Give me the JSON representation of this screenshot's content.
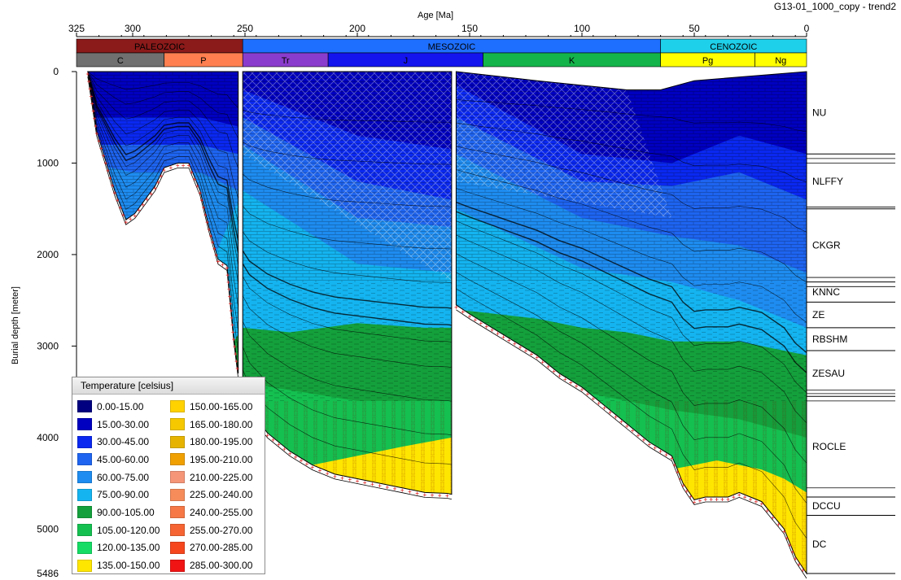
{
  "chart_data": {
    "type": "area",
    "title": "G13-01_1000_copy - trend2",
    "xlabel": "Age [Ma]",
    "ylabel": "Burial depth [meter]",
    "xlim": [
      325,
      0
    ],
    "ylim": [
      0,
      5486
    ],
    "x_ticks": [
      325,
      300,
      250,
      200,
      150,
      100,
      50,
      0
    ],
    "y_ticks": [
      0,
      1000,
      2000,
      3000,
      4000,
      5000,
      5486
    ],
    "eras": [
      {
        "name": "PALEOZOIC",
        "start": 325,
        "end": 251,
        "color": "#8b1a1a"
      },
      {
        "name": "MESOZOIC",
        "start": 251,
        "end": 65,
        "color": "#1e6fff"
      },
      {
        "name": "CENOZOIC",
        "start": 65,
        "end": 0,
        "color": "#1fd0ea"
      }
    ],
    "periods": [
      {
        "name": "C",
        "start": 325,
        "end": 286,
        "color": "#707070"
      },
      {
        "name": "P",
        "start": 286,
        "end": 251,
        "color": "#ff7f50"
      },
      {
        "name": "Tr",
        "start": 251,
        "end": 213,
        "color": "#8a3dcc"
      },
      {
        "name": "J",
        "start": 213,
        "end": 144,
        "color": "#1414ee"
      },
      {
        "name": "K",
        "start": 144,
        "end": 65,
        "color": "#14b44a"
      },
      {
        "name": "Pg",
        "start": 65,
        "end": 23,
        "color": "#ffff00"
      },
      {
        "name": "Ng",
        "start": 23,
        "end": 0,
        "color": "#ffff00"
      }
    ],
    "formations": [
      {
        "name": "NU",
        "top": 0,
        "base": 900
      },
      {
        "name": "NLFFY",
        "top": 900,
        "base": 1500
      },
      {
        "name": "CKGR",
        "top": 1500,
        "base": 2300
      },
      {
        "name": "KNNC",
        "top": 2300,
        "base": 2520
      },
      {
        "name": "ZE",
        "top": 2520,
        "base": 2800
      },
      {
        "name": "RBSHM",
        "top": 2800,
        "base": 3050
      },
      {
        "name": "ZESAU",
        "top": 3050,
        "base": 3550
      },
      {
        "name": "ROCLE",
        "top": 3550,
        "base": 4650
      },
      {
        "name": "DCCU",
        "top": 4650,
        "base": 4850
      },
      {
        "name": "DC",
        "top": 4850,
        "base": 5486
      }
    ],
    "legend": {
      "title": "Temperature [celsius]",
      "items": [
        {
          "label": "0.00-15.00",
          "color": "#000080"
        },
        {
          "label": "15.00-30.00",
          "color": "#0000c0"
        },
        {
          "label": "30.00-45.00",
          "color": "#0a28f0"
        },
        {
          "label": "45.00-60.00",
          "color": "#1e64f0"
        },
        {
          "label": "60.00-75.00",
          "color": "#1e8cf0"
        },
        {
          "label": "75.00-90.00",
          "color": "#14b4f0"
        },
        {
          "label": "90.00-105.00",
          "color": "#14a03c"
        },
        {
          "label": "105.00-120.00",
          "color": "#14c050"
        },
        {
          "label": "120.00-135.00",
          "color": "#14dc64"
        },
        {
          "label": "135.00-150.00",
          "color": "#ffe600"
        },
        {
          "label": "150.00-165.00",
          "color": "#ffd200"
        },
        {
          "label": "165.00-180.00",
          "color": "#f5c800"
        },
        {
          "label": "180.00-195.00",
          "color": "#e6b400"
        },
        {
          "label": "195.00-210.00",
          "color": "#f0a000"
        },
        {
          "label": "210.00-225.00",
          "color": "#f59678"
        },
        {
          "label": "225.00-240.00",
          "color": "#f58c5a"
        },
        {
          "label": "240.00-255.00",
          "color": "#f57846"
        },
        {
          "label": "255.00-270.00",
          "color": "#f56432"
        },
        {
          "label": "270.00-285.00",
          "color": "#f5461e"
        },
        {
          "label": "285.00-300.00",
          "color": "#f01414"
        }
      ]
    },
    "temperature_zones": [
      {
        "range": "0.00-15.00",
        "color": "#000080"
      },
      {
        "range": "15.00-30.00",
        "color": "#0000c0"
      },
      {
        "range": "30.00-45.00",
        "color": "#0a28f0"
      },
      {
        "range": "45.00-60.00",
        "color": "#1e64f0"
      },
      {
        "range": "60.00-75.00",
        "color": "#1e8cf0"
      },
      {
        "range": "75.00-90.00",
        "color": "#14b4f0"
      },
      {
        "range": "90.00-105.00",
        "color": "#14a03c"
      },
      {
        "range": "105.00-120.00",
        "color": "#14c050"
      },
      {
        "range": "120.00-135.00",
        "color": "#14dc64"
      },
      {
        "range": "135.00-150.00",
        "color": "#ffe600"
      }
    ],
    "basement_series": [
      {
        "x": [
          320,
          316,
          308,
          303,
          299,
          290,
          286,
          280,
          275,
          270,
          266,
          262,
          258,
          255,
          253
        ],
        "y": [
          0,
          650,
          1300,
          1620,
          1550,
          1250,
          1050,
          1000,
          1000,
          1300,
          1700,
          2050,
          2120,
          2900,
          3300
        ]
      },
      {
        "x": [
          251,
          248,
          240,
          230,
          220,
          210,
          200,
          190,
          180,
          170,
          160,
          158
        ],
        "y": [
          3500,
          3700,
          3950,
          4150,
          4300,
          4400,
          4450,
          4500,
          4550,
          4600,
          4610,
          4620
        ]
      },
      {
        "x": [
          156,
          150,
          140,
          130,
          120,
          110,
          100,
          90,
          80,
          70,
          60,
          55,
          50,
          45,
          40,
          35,
          30,
          25,
          20,
          15,
          10,
          5,
          0
        ],
        "y": [
          2550,
          2650,
          2800,
          2950,
          3100,
          3300,
          3450,
          3650,
          3850,
          4050,
          4200,
          4500,
          4680,
          4650,
          4650,
          4650,
          4600,
          4650,
          4700,
          4850,
          5000,
          5300,
          5486
        ]
      }
    ],
    "surface_series": [
      {
        "x": [
          320,
          253
        ],
        "y": [
          0,
          0
        ]
      },
      {
        "x": [
          251,
          158
        ],
        "y": [
          0,
          0
        ]
      },
      {
        "x": [
          156,
          120,
          100,
          80,
          65,
          50,
          0
        ],
        "y": [
          0,
          100,
          150,
          200,
          200,
          100,
          0
        ]
      }
    ],
    "zone_boundaries": [
      {
        "range": "30.00-45.00",
        "x": [
          320,
          300,
          290,
          270,
          253,
          251,
          200,
          158,
          156,
          100,
          60,
          30,
          0
        ],
        "y": [
          500,
          500,
          500,
          500,
          600,
          200,
          700,
          850,
          150,
          900,
          1000,
          700,
          900
        ]
      },
      {
        "range": "45.00-60.00",
        "x": [
          320,
          300,
          290,
          270,
          253,
          251,
          200,
          158,
          156,
          100,
          60,
          30,
          0
        ],
        "y": [
          800,
          800,
          800,
          800,
          900,
          500,
          1200,
          1400,
          500,
          1200,
          1250,
          1100,
          1400
        ]
      },
      {
        "range": "60.00-75.00",
        "x": [
          320,
          300,
          290,
          270,
          253,
          251,
          200,
          158,
          156,
          100,
          60,
          30,
          0
        ],
        "y": [
          1000,
          1100,
          1100,
          1100,
          1300,
          800,
          1600,
          1700,
          900,
          1600,
          1800,
          1900,
          2200
        ]
      },
      {
        "range": "75.00-90.00",
        "x": [
          251,
          200,
          158,
          156,
          100,
          60,
          30,
          0
        ],
        "y": [
          1300,
          2100,
          2200,
          1500,
          2150,
          2300,
          2500,
          2800
        ]
      },
      {
        "range": "90.00-105.00",
        "x": [
          251,
          230,
          200,
          170,
          158,
          156,
          120,
          100,
          80,
          60,
          30,
          0
        ],
        "y": [
          2800,
          2850,
          2750,
          2800,
          2800,
          2600,
          2700,
          2800,
          2850,
          2950,
          2950,
          3100
        ]
      },
      {
        "range": "105.00-120.00",
        "x": [
          251,
          200,
          158,
          156,
          100,
          60,
          30,
          0
        ],
        "y": [
          3400,
          3600,
          3600,
          3200,
          3500,
          3700,
          3800,
          4000
        ]
      },
      {
        "range": "135.00-150.00",
        "x": [
          220,
          200,
          180,
          158,
          156,
          50,
          40,
          30,
          20,
          10,
          0
        ],
        "y": [
          4300,
          4200,
          4100,
          4000,
          4800,
          4300,
          4250,
          4300,
          4350,
          4450,
          4600
        ]
      }
    ]
  }
}
